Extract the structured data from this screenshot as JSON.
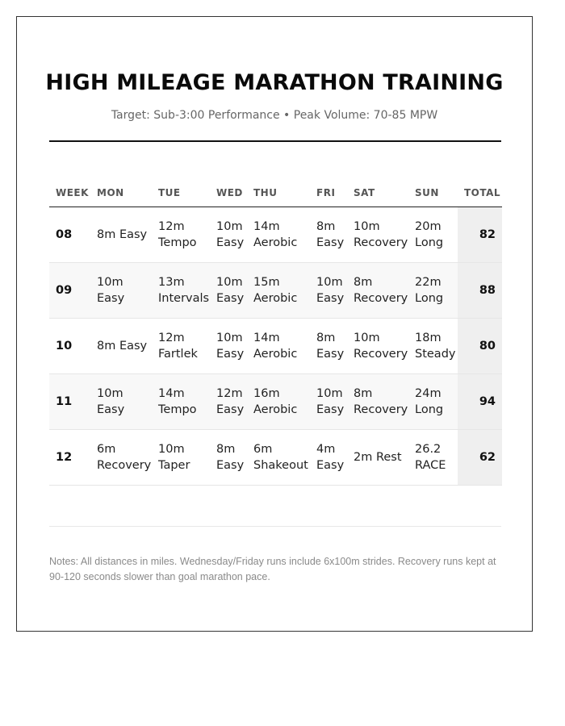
{
  "title": "HIGH MILEAGE MARATHON TRAINING",
  "subtitle": "Target: Sub-3:00 Performance • Peak Volume: 70-85 MPW",
  "table": {
    "headers": [
      "WEEK",
      "MON",
      "TUE",
      "WED",
      "THU",
      "FRI",
      "SAT",
      "SUN",
      "TOTAL"
    ],
    "rows": [
      {
        "week": "08",
        "mon": "8m Easy",
        "tue": "12m Tempo",
        "wed": "10m Easy",
        "thu": "14m Aerobic",
        "fri": "8m Easy",
        "sat": "10m Recovery",
        "sun": "20m Long",
        "total": "82"
      },
      {
        "week": "09",
        "mon": "10m Easy",
        "tue": "13m Intervals",
        "wed": "10m Easy",
        "thu": "15m Aerobic",
        "fri": "10m Easy",
        "sat": "8m Recovery",
        "sun": "22m Long",
        "total": "88"
      },
      {
        "week": "10",
        "mon": "8m Easy",
        "tue": "12m Fartlek",
        "wed": "10m Easy",
        "thu": "14m Aerobic",
        "fri": "8m Easy",
        "sat": "10m Recovery",
        "sun": "18m Steady",
        "total": "80"
      },
      {
        "week": "11",
        "mon": "10m Easy",
        "tue": "14m Tempo",
        "wed": "12m Easy",
        "thu": "16m Aerobic",
        "fri": "10m Easy",
        "sat": "8m Recovery",
        "sun": "24m Long",
        "total": "94"
      },
      {
        "week": "12",
        "mon": "6m Recovery",
        "tue": "10m Taper",
        "wed": "8m Easy",
        "thu": "6m Shakeout",
        "fri": "4m Easy",
        "sat": "2m Rest",
        "sun": "26.2 RACE",
        "total": "62"
      }
    ]
  },
  "notes": "Notes: All distances in miles. Wednesday/Friday runs include 6x100m strides. Recovery runs kept at 90-120 seconds slower than goal marathon pace."
}
